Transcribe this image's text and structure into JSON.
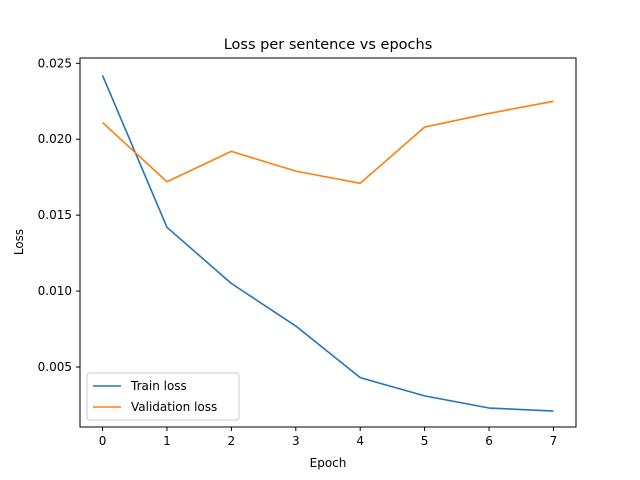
{
  "chart_data": {
    "type": "line",
    "title": "Loss per sentence vs epochs",
    "xlabel": "Epoch",
    "ylabel": "Loss",
    "x": [
      0,
      1,
      2,
      3,
      4,
      5,
      6,
      7
    ],
    "xlim": [
      -0.35,
      7.35
    ],
    "ylim": [
      0.00105,
      0.02535
    ],
    "xticks": [
      "0",
      "1",
      "2",
      "3",
      "4",
      "5",
      "6",
      "7"
    ],
    "yticks": [
      "0.005",
      "0.010",
      "0.015",
      "0.020",
      "0.025"
    ],
    "ytick_values": [
      0.005,
      0.01,
      0.015,
      0.02,
      0.025
    ],
    "grid": false,
    "legend_position": "lower-left",
    "series": [
      {
        "name": "Train loss",
        "color": "#1f77b4",
        "values": [
          0.0242,
          0.0142,
          0.0105,
          0.0077,
          0.0043,
          0.0031,
          0.0023,
          0.0021
        ]
      },
      {
        "name": "Validation loss",
        "color": "#ff7f0e",
        "values": [
          0.0211,
          0.0172,
          0.0192,
          0.0179,
          0.0171,
          0.0208,
          0.0217,
          0.0225
        ]
      }
    ]
  }
}
